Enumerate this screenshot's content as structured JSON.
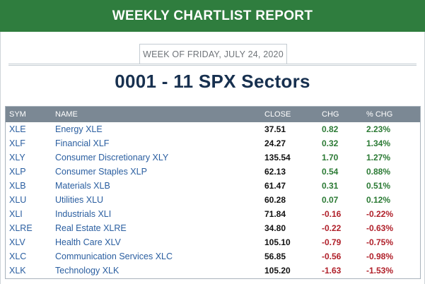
{
  "header": {
    "title": "WEEKLY CHARTLIST REPORT",
    "bg": "#2f7d3e"
  },
  "week_label": "WEEK OF FRIDAY, JULY 24, 2020",
  "report_title": "0001 - 11 SPX Sectors",
  "table": {
    "columns": {
      "sym": "SYM",
      "name": "NAME",
      "close": "CLOSE",
      "chg": "CHG",
      "pct": "% CHG"
    },
    "rows": [
      {
        "sym": "XLE",
        "name": "Energy XLE",
        "close": "37.51",
        "chg": "0.82",
        "pct": "2.23%",
        "dir": "pos"
      },
      {
        "sym": "XLF",
        "name": "Financial XLF",
        "close": "24.27",
        "chg": "0.32",
        "pct": "1.34%",
        "dir": "pos"
      },
      {
        "sym": "XLY",
        "name": "Consumer Discretionary XLY",
        "close": "135.54",
        "chg": "1.70",
        "pct": "1.27%",
        "dir": "pos"
      },
      {
        "sym": "XLP",
        "name": "Consumer Staples XLP",
        "close": "62.13",
        "chg": "0.54",
        "pct": "0.88%",
        "dir": "pos"
      },
      {
        "sym": "XLB",
        "name": "Materials XLB",
        "close": "61.47",
        "chg": "0.31",
        "pct": "0.51%",
        "dir": "pos"
      },
      {
        "sym": "XLU",
        "name": "Utilities XLU",
        "close": "60.28",
        "chg": "0.07",
        "pct": "0.12%",
        "dir": "pos"
      },
      {
        "sym": "XLI",
        "name": "Industrials XLI",
        "close": "71.84",
        "chg": "-0.16",
        "pct": "-0.22%",
        "dir": "neg"
      },
      {
        "sym": "XLRE",
        "name": "Real Estate XLRE",
        "close": "34.80",
        "chg": "-0.22",
        "pct": "-0.63%",
        "dir": "neg"
      },
      {
        "sym": "XLV",
        "name": "Health Care XLV",
        "close": "105.10",
        "chg": "-0.79",
        "pct": "-0.75%",
        "dir": "neg"
      },
      {
        "sym": "XLC",
        "name": "Communication Services XLC",
        "close": "56.85",
        "chg": "-0.56",
        "pct": "-0.98%",
        "dir": "neg"
      },
      {
        "sym": "XLK",
        "name": "Technology XLK",
        "close": "105.20",
        "chg": "-1.63",
        "pct": "-1.53%",
        "dir": "neg"
      }
    ]
  },
  "colors": {
    "positive": "#2b7a34",
    "negative": "#b0202a",
    "link": "#2a5ea0",
    "header_row": "#7b8894"
  }
}
